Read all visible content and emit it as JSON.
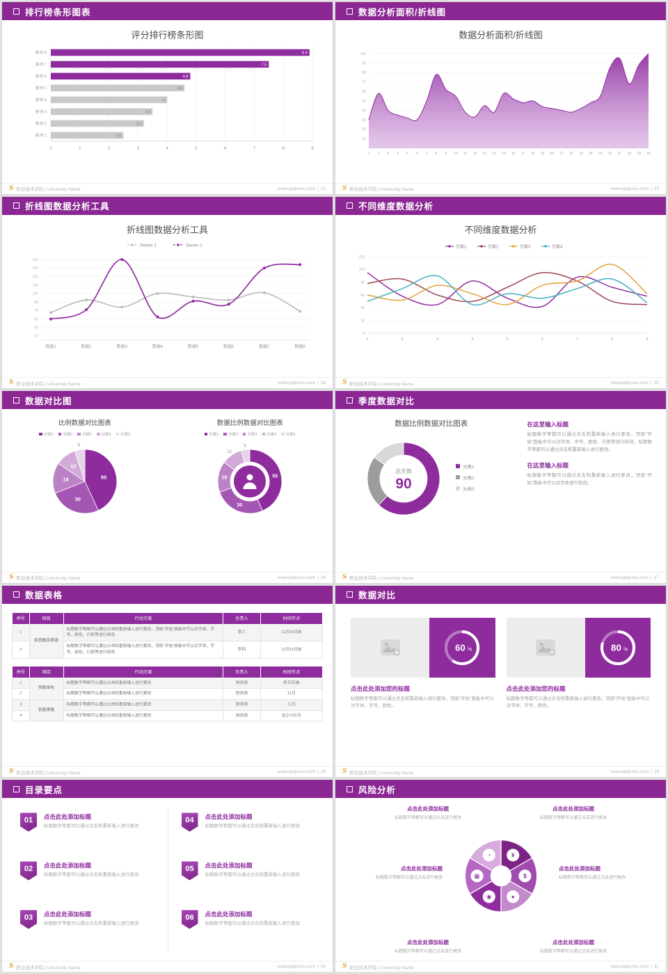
{
  "theme": {
    "header_bg": "#8a2793",
    "accent": "#8e2c9e",
    "accent_dark": "#7c2386",
    "gray_bar": "#c9c9c9",
    "series_gray": "#bdbdbd",
    "maroon": "#9c4550",
    "orange": "#e2a23c",
    "teal": "#43b0c1",
    "logo_orange": "#e8a33d",
    "purple_shades": [
      "#8e2c9e",
      "#a457b2",
      "#bb82c5",
      "#d2aad8",
      "#e7d3ec"
    ],
    "donut_colors": [
      "#8e2c9e",
      "#9d9d9d",
      "#d8d8d8"
    ],
    "wheel_shades": [
      "#7c2386",
      "#a04cae",
      "#c488cd",
      "#8e2c9e",
      "#b468c1",
      "#d8abdf"
    ]
  },
  "site": {
    "url": "www.pptjunsu.com"
  },
  "footer_left": "职业技术学院 | University Name",
  "slides": [
    {
      "header": "排行榜条形图表",
      "page": "22",
      "chart_data": {
        "type": "bar",
        "orientation": "horizontal",
        "title": "评分排行榜条形图",
        "categories": [
          "系列 8",
          "系列 7",
          "系列 6",
          "系列 5",
          "系列 4",
          "系列 3",
          "系列 2",
          "系列 1"
        ],
        "values": [
          8.9,
          7.5,
          4.8,
          4.6,
          4,
          3.5,
          3.2,
          2.5
        ],
        "highlight_count": 3,
        "xlim": [
          0,
          9
        ],
        "xticks": [
          0,
          1,
          2,
          3,
          4,
          5,
          6,
          7,
          8,
          9
        ],
        "grid": "vertical"
      }
    },
    {
      "header": "数据分析面积/折线图",
      "page": "23",
      "chart_data": {
        "type": "area",
        "title": "数据分析面积/折线图",
        "x": [
          1,
          2,
          3,
          4,
          5,
          6,
          7,
          8,
          9,
          10,
          11,
          12,
          13,
          14,
          15,
          16,
          17,
          18,
          19,
          20,
          21,
          22,
          23,
          24,
          25,
          26,
          27,
          28,
          29,
          30
        ],
        "values": [
          30,
          58,
          40,
          35,
          32,
          30,
          50,
          78,
          62,
          55,
          38,
          33,
          45,
          38,
          58,
          52,
          48,
          50,
          44,
          42,
          40,
          38,
          42,
          48,
          55,
          85,
          95,
          68,
          88,
          100
        ],
        "ylim": [
          0,
          100
        ],
        "yticks": [
          10,
          20,
          30,
          40,
          50,
          60,
          70,
          80,
          90,
          100
        ],
        "grid": "horizontal"
      }
    },
    {
      "header": "折线图数据分析工具",
      "page": "24",
      "chart_data": {
        "type": "line",
        "title": "折线图数据分析工具",
        "categories": [
          "数据1",
          "数据2",
          "数据3",
          "数据4",
          "数据5",
          "数据6",
          "数据7",
          "数据8"
        ],
        "series": [
          {
            "name": "Series 1",
            "color_key": "series_gray",
            "values": [
              65,
              95,
              78,
              110,
              102,
              95,
              112,
              68
            ]
          },
          {
            "name": "Series 2",
            "color_key": "accent",
            "values": [
              50,
              72,
              190,
              55,
              92,
              85,
              170,
              178
            ]
          }
        ],
        "ylim": [
          0,
          200
        ],
        "yticks": [
          10,
          30,
          50,
          70,
          90,
          110,
          130,
          150,
          170,
          190
        ],
        "legend_position": "top"
      }
    },
    {
      "header": "不同维度数据分析",
      "page": "25",
      "chart_data": {
        "type": "line",
        "title": "不同维度数据分析",
        "x": [
          1,
          2,
          3,
          4,
          5,
          6,
          7,
          8,
          9
        ],
        "series": [
          {
            "name": "分类1",
            "color_key": "accent",
            "values": [
              95,
              58,
              45,
              82,
              55,
              42,
              88,
              72,
              58
            ]
          },
          {
            "name": "分类2",
            "color_key": "maroon",
            "values": [
              78,
              85,
              60,
              50,
              72,
              95,
              82,
              50,
              45
            ]
          },
          {
            "name": "分类3",
            "color_key": "orange",
            "values": [
              60,
              52,
              75,
              62,
              45,
              75,
              82,
              108,
              62
            ]
          },
          {
            "name": "分类4",
            "color_key": "teal",
            "values": [
              50,
              70,
              90,
              45,
              62,
              55,
              70,
              85,
              48
            ]
          }
        ],
        "ylim": [
          0,
          120
        ],
        "yticks": [
          0,
          20,
          40,
          60,
          80,
          100,
          120
        ],
        "legend_position": "top"
      }
    },
    {
      "header": "数据对比图",
      "page": "26",
      "chart_data": [
        {
          "type": "pie",
          "title": "比例数据对比图表",
          "legend": [
            "分类1",
            "分类2",
            "分类3",
            "分类4",
            "分类5"
          ],
          "values": [
            50,
            30,
            18,
            12,
            6
          ]
        },
        {
          "type": "donut",
          "title": "数据比例数据对比图表",
          "legend": [
            "分类1",
            "分类2",
            "分类3",
            "分类4",
            "分类5"
          ],
          "values": [
            50,
            30,
            18,
            12,
            5
          ],
          "center_icon": "presenter-icon"
        }
      ]
    },
    {
      "header": "季度数据对比",
      "page": "27",
      "chart_data": {
        "type": "donut",
        "title": "数据比例数据对比图表",
        "legend": [
          "分类1",
          "分类2",
          "分类3"
        ],
        "values": [
          62,
          23,
          15
        ],
        "center_label": "总天数",
        "center_value": "90"
      },
      "blocks": [
        {
          "title": "在这里输入标题",
          "text": "标题数字等都可以通过点击和重新输入进行更改，顶部“开始”面板中可以对字体、字号、颜色、行距等进行修改，标题数字等都可以通过点击和重新输入进行更改。"
        },
        {
          "title": "在这里输入标题",
          "text": "标题数字等都可以通过点击和重新输入进行更改，顶部“开始”面板中可以对字体进行修改。"
        }
      ]
    },
    {
      "header": "数据表格",
      "page": "28",
      "tables": [
        {
          "headers": [
            "序号",
            "项目",
            "行动方案",
            "负责人",
            "时间节点"
          ],
          "rows": [
            {
              "cells": [
                "1",
                "拓宽融资渠道",
                "标题数字等都可以通过点击和重新输入进行更改，顶部“开始”面板中可以对字体、字号、颜色、行距等进行修改",
                "张三",
                "11月30日前"
              ],
              "spans": {
                "1": 2
              }
            },
            {
              "cells": [
                "2",
                null,
                "标题数字等都可以通过点击和重新输入进行更改，顶部“开始”面板中可以对字体、字号、颜色、行距等进行修改",
                "李四",
                "11月15日前"
              ]
            }
          ]
        },
        {
          "headers": [
            "序号",
            "项目",
            "行动方案",
            "负责人",
            "时间节点"
          ],
          "rows": [
            {
              "cells": [
                "1",
                "预算审核",
                "标题数字等都可以通过点击和重新输入进行更改",
                "财务部",
                "即日实施"
              ],
              "spans": {
                "1": 2
              }
            },
            {
              "cells": [
                "2",
                null,
                "标题数字等都可以通过点击和重新输入进行更改",
                "财务部",
                "11月"
              ]
            },
            {
              "cells": [
                "3",
                "销售策略",
                "标题数字等都可以通过点击和重新输入进行更改",
                "财务部",
                "11月"
              ],
              "spans": {
                "1": 2
              }
            },
            {
              "cells": [
                "4",
                null,
                "标题数字等都可以通过点击和重新输入进行更改",
                "财务部",
                "至少1次/月"
              ]
            }
          ]
        }
      ]
    },
    {
      "header": "数据对比",
      "page": "29",
      "cards": [
        {
          "percent": 60,
          "title": "点击此处添加您的标题",
          "text": "标题数字等都可以通过点击和重新输入进行更改，顶部“开始”面板中可以对字体、字号、颜色。"
        },
        {
          "percent": 80,
          "title": "点击此处添加您的标题",
          "text": "标题数字等都可以通过点击和重新输入进行更改，顶部“开始”面板中可以对字体、字号、颜色。"
        }
      ]
    },
    {
      "header": "目录要点",
      "page": "30",
      "items": [
        {
          "num": "01",
          "title": "点击此处添加标题",
          "text": "标题数字等都可以通过点击和重新输入进行更改"
        },
        {
          "num": "02",
          "title": "点击此处添加标题",
          "text": "标题数字等都可以通过点击和重新输入进行更改"
        },
        {
          "num": "03",
          "title": "点击此处添加标题",
          "text": "标题数字等都可以通过点击和重新输入进行更改"
        },
        {
          "num": "04",
          "title": "点击此处添加标题",
          "text": "标题数字等都可以通过点击和重新输入进行更改"
        },
        {
          "num": "05",
          "title": "点击此处添加标题",
          "text": "标题数字等都可以通过点击和重新输入进行更改"
        },
        {
          "num": "06",
          "title": "点击此处添加标题",
          "text": "标题数字等都可以通过点击和重新输入进行更改"
        }
      ]
    },
    {
      "header": "风险分析",
      "page": "31",
      "icons": [
        "money-bag-icon",
        "coins-icon",
        "people-icon",
        "team-icon",
        "chart-icon",
        "pie-chart-icon"
      ],
      "icon_glyphs": [
        "¥",
        "$",
        "●",
        "◉",
        "▦",
        "◔"
      ],
      "blocks": [
        {
          "title": "点击此处添加标题",
          "text": "标题数字等都可以通过点击进行更改"
        },
        {
          "title": "点击此处添加标题",
          "text": "标题数字等都可以通过点击进行更改"
        },
        {
          "title": "点击此处添加标题",
          "text": "标题数字等都可以通过点击进行更改"
        },
        {
          "title": "点击此处添加标题",
          "text": "标题数字等都可以通过点击进行更改"
        },
        {
          "title": "点击此处添加标题",
          "text": "标题数字等都可以通过点击进行更改"
        },
        {
          "title": "点击此处添加标题",
          "text": "标题数字等都可以通过点击进行更改"
        }
      ]
    }
  ]
}
